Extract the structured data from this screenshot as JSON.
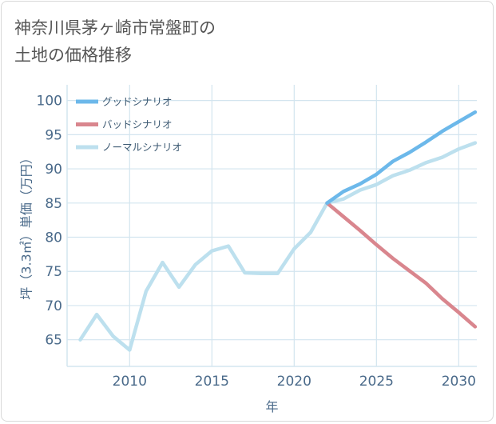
{
  "title": {
    "line1": "神奈川県茅ヶ崎市常盤町の",
    "line2": "土地の価格推移"
  },
  "colors": {
    "good": "#6cb8ea",
    "bad": "#d9868e",
    "normal": "#bde0ee",
    "grid": "#d3e5ef",
    "axis": "#4a6a8a"
  },
  "chart_data": {
    "type": "line",
    "title": "神奈川県茅ヶ崎市常盤町の土地の価格推移",
    "xlabel": "年",
    "ylabel": "坪（3.3㎡）単価（万円）",
    "xlim": [
      2006.2,
      2031.1
    ],
    "ylim": [
      61.1,
      102.3
    ],
    "x_ticks": [
      2010,
      2015,
      2020,
      2025,
      2030
    ],
    "y_ticks": [
      65,
      70,
      75,
      80,
      85,
      90,
      95,
      100
    ],
    "grid": true,
    "legend_position": "top-left",
    "series": [
      {
        "name": "グッドシナリオ",
        "color_key": "good",
        "x": [
          2022,
          2023,
          2024,
          2025,
          2026,
          2027,
          2028,
          2029,
          2030,
          2031
        ],
        "values": [
          85.0,
          86.7,
          87.8,
          89.2,
          91.1,
          92.4,
          93.9,
          95.5,
          96.9,
          98.3
        ]
      },
      {
        "name": "バッドシナリオ",
        "color_key": "bad",
        "x": [
          2022,
          2023,
          2024,
          2025,
          2026,
          2027,
          2028,
          2029,
          2030,
          2031
        ],
        "values": [
          85.0,
          83.0,
          81.0,
          78.9,
          76.9,
          75.1,
          73.3,
          71.0,
          69.0,
          66.9
        ]
      },
      {
        "name": "ノーマルシナリオ",
        "color_key": "normal",
        "x": [
          2007,
          2008,
          2009,
          2010,
          2011,
          2012,
          2013,
          2014,
          2015,
          2016,
          2017,
          2018,
          2019,
          2020,
          2021,
          2022,
          2023,
          2024,
          2025,
          2026,
          2027,
          2028,
          2029,
          2030,
          2031
        ],
        "values": [
          65.0,
          68.7,
          65.5,
          63.5,
          72.1,
          76.3,
          72.7,
          76.0,
          78.0,
          78.7,
          74.8,
          74.7,
          74.7,
          78.3,
          80.7,
          85.0,
          85.6,
          86.9,
          87.7,
          89.0,
          89.8,
          90.9,
          91.7,
          92.9,
          93.8
        ]
      }
    ]
  }
}
